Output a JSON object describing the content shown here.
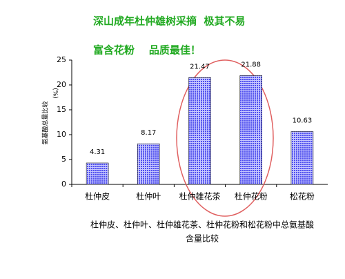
{
  "chart_data": {
    "type": "bar",
    "title": [
      "深山成年杜仲雄树采摘  极其不易",
      "富含花粉    品质最佳！"
    ],
    "y_label": "氨基酸总量比较",
    "y_unit": "(%)",
    "categories": [
      "杜仲皮",
      "杜仲叶",
      "杜仲雄花茶",
      "杜仲花粉",
      "松花粉"
    ],
    "values": [
      4.31,
      8.17,
      21.47,
      21.88,
      10.63
    ],
    "color": "#5050ee",
    "ylim": [
      0,
      25
    ],
    "yticks": [
      0,
      5,
      10,
      15,
      20,
      25
    ],
    "caption": [
      "杜仲皮、杜仲叶、杜仲雄花茶、杜仲花粉和松花粉中总氨基酸",
      "含量比较"
    ]
  }
}
